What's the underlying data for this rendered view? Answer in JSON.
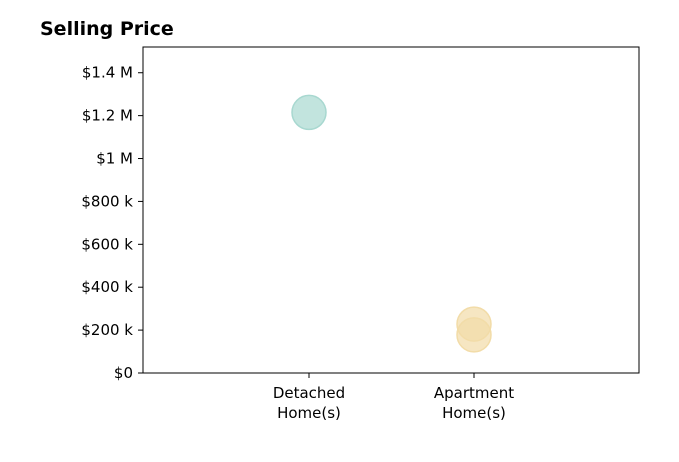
{
  "chart_data": {
    "type": "scatter",
    "title": "Selling Price",
    "xlabel": "",
    "ylabel": "",
    "categories": [
      "Detached\nHome(s)",
      "Apartment\nHome(s)"
    ],
    "ylim": [
      0,
      1520000
    ],
    "yticks": [
      {
        "value": 0,
        "label": "$0"
      },
      {
        "value": 200000,
        "label": "$200 k"
      },
      {
        "value": 400000,
        "label": "$400 k"
      },
      {
        "value": 600000,
        "label": "$600 k"
      },
      {
        "value": 800000,
        "label": "$800 k"
      },
      {
        "value": 1000000,
        "label": "$1 M"
      },
      {
        "value": 1200000,
        "label": "$1.2 M"
      },
      {
        "value": 1400000,
        "label": "$1.4 M"
      }
    ],
    "points": [
      {
        "category": "Detached\nHome(s)",
        "y": 1215000,
        "color": "#a8d8d0"
      },
      {
        "category": "Apartment\nHome(s)",
        "y": 228000,
        "color": "#f2dca8"
      },
      {
        "category": "Apartment\nHome(s)",
        "y": 178000,
        "color": "#f2dca8"
      }
    ],
    "grid": false,
    "legend": "none"
  }
}
